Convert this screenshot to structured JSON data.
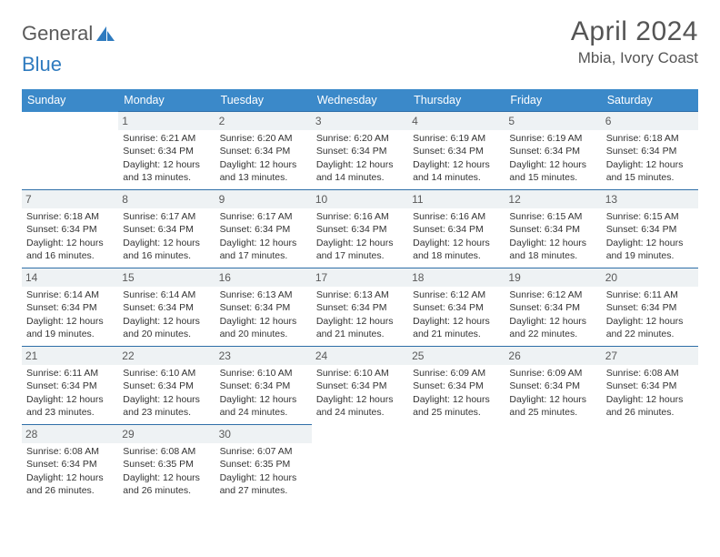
{
  "logo": {
    "text_a": "General",
    "text_b": "Blue"
  },
  "header": {
    "month_title": "April 2024",
    "location": "Mbia, Ivory Coast"
  },
  "colors": {
    "header_bg": "#3b89c9",
    "header_fg": "#ffffff",
    "row_border": "#2f6fa8",
    "daynum_bg": "#eef2f4",
    "logo_blue": "#2f7bbf",
    "text": "#333333"
  },
  "calendar": {
    "type": "table",
    "columns": [
      "Sunday",
      "Monday",
      "Tuesday",
      "Wednesday",
      "Thursday",
      "Friday",
      "Saturday"
    ],
    "weeks": [
      [
        null,
        {
          "d": "1",
          "sr": "6:21 AM",
          "ss": "6:34 PM",
          "dl": "12 hours and 13 minutes."
        },
        {
          "d": "2",
          "sr": "6:20 AM",
          "ss": "6:34 PM",
          "dl": "12 hours and 13 minutes."
        },
        {
          "d": "3",
          "sr": "6:20 AM",
          "ss": "6:34 PM",
          "dl": "12 hours and 14 minutes."
        },
        {
          "d": "4",
          "sr": "6:19 AM",
          "ss": "6:34 PM",
          "dl": "12 hours and 14 minutes."
        },
        {
          "d": "5",
          "sr": "6:19 AM",
          "ss": "6:34 PM",
          "dl": "12 hours and 15 minutes."
        },
        {
          "d": "6",
          "sr": "6:18 AM",
          "ss": "6:34 PM",
          "dl": "12 hours and 15 minutes."
        }
      ],
      [
        {
          "d": "7",
          "sr": "6:18 AM",
          "ss": "6:34 PM",
          "dl": "12 hours and 16 minutes."
        },
        {
          "d": "8",
          "sr": "6:17 AM",
          "ss": "6:34 PM",
          "dl": "12 hours and 16 minutes."
        },
        {
          "d": "9",
          "sr": "6:17 AM",
          "ss": "6:34 PM",
          "dl": "12 hours and 17 minutes."
        },
        {
          "d": "10",
          "sr": "6:16 AM",
          "ss": "6:34 PM",
          "dl": "12 hours and 17 minutes."
        },
        {
          "d": "11",
          "sr": "6:16 AM",
          "ss": "6:34 PM",
          "dl": "12 hours and 18 minutes."
        },
        {
          "d": "12",
          "sr": "6:15 AM",
          "ss": "6:34 PM",
          "dl": "12 hours and 18 minutes."
        },
        {
          "d": "13",
          "sr": "6:15 AM",
          "ss": "6:34 PM",
          "dl": "12 hours and 19 minutes."
        }
      ],
      [
        {
          "d": "14",
          "sr": "6:14 AM",
          "ss": "6:34 PM",
          "dl": "12 hours and 19 minutes."
        },
        {
          "d": "15",
          "sr": "6:14 AM",
          "ss": "6:34 PM",
          "dl": "12 hours and 20 minutes."
        },
        {
          "d": "16",
          "sr": "6:13 AM",
          "ss": "6:34 PM",
          "dl": "12 hours and 20 minutes."
        },
        {
          "d": "17",
          "sr": "6:13 AM",
          "ss": "6:34 PM",
          "dl": "12 hours and 21 minutes."
        },
        {
          "d": "18",
          "sr": "6:12 AM",
          "ss": "6:34 PM",
          "dl": "12 hours and 21 minutes."
        },
        {
          "d": "19",
          "sr": "6:12 AM",
          "ss": "6:34 PM",
          "dl": "12 hours and 22 minutes."
        },
        {
          "d": "20",
          "sr": "6:11 AM",
          "ss": "6:34 PM",
          "dl": "12 hours and 22 minutes."
        }
      ],
      [
        {
          "d": "21",
          "sr": "6:11 AM",
          "ss": "6:34 PM",
          "dl": "12 hours and 23 minutes."
        },
        {
          "d": "22",
          "sr": "6:10 AM",
          "ss": "6:34 PM",
          "dl": "12 hours and 23 minutes."
        },
        {
          "d": "23",
          "sr": "6:10 AM",
          "ss": "6:34 PM",
          "dl": "12 hours and 24 minutes."
        },
        {
          "d": "24",
          "sr": "6:10 AM",
          "ss": "6:34 PM",
          "dl": "12 hours and 24 minutes."
        },
        {
          "d": "25",
          "sr": "6:09 AM",
          "ss": "6:34 PM",
          "dl": "12 hours and 25 minutes."
        },
        {
          "d": "26",
          "sr": "6:09 AM",
          "ss": "6:34 PM",
          "dl": "12 hours and 25 minutes."
        },
        {
          "d": "27",
          "sr": "6:08 AM",
          "ss": "6:34 PM",
          "dl": "12 hours and 26 minutes."
        }
      ],
      [
        {
          "d": "28",
          "sr": "6:08 AM",
          "ss": "6:34 PM",
          "dl": "12 hours and 26 minutes."
        },
        {
          "d": "29",
          "sr": "6:08 AM",
          "ss": "6:35 PM",
          "dl": "12 hours and 26 minutes."
        },
        {
          "d": "30",
          "sr": "6:07 AM",
          "ss": "6:35 PM",
          "dl": "12 hours and 27 minutes."
        },
        null,
        null,
        null,
        null
      ]
    ],
    "labels": {
      "sunrise": "Sunrise:",
      "sunset": "Sunset:",
      "daylight": "Daylight:"
    }
  }
}
